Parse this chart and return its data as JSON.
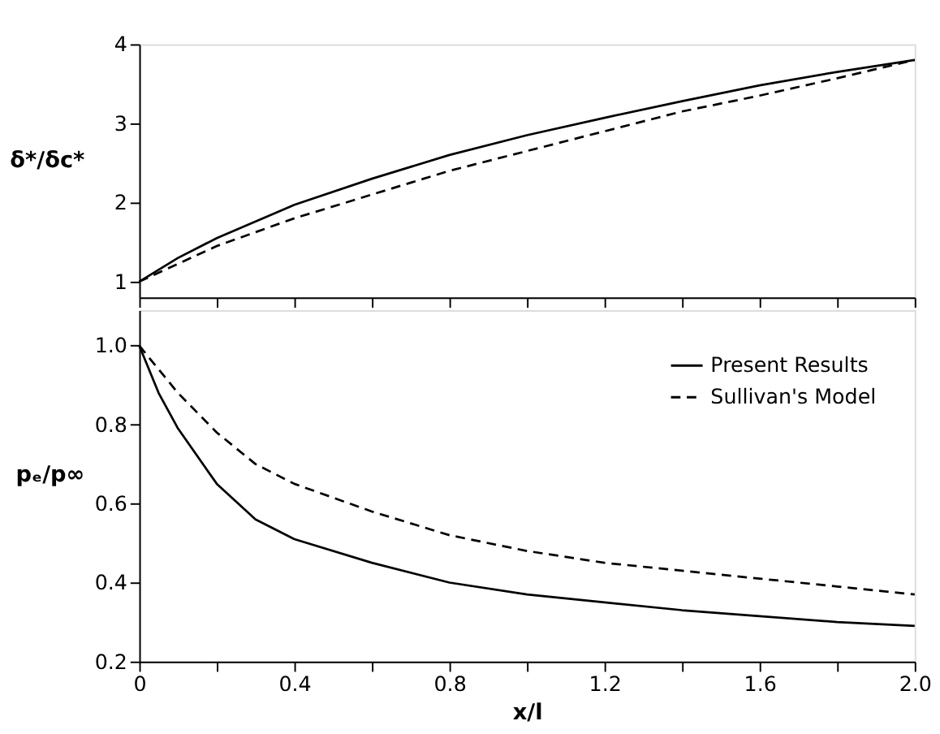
{
  "chart_data": [
    {
      "type": "line",
      "ylabel": "δ*/δc*",
      "xlim": [
        0,
        2.0
      ],
      "ylim": [
        0.8,
        4
      ],
      "yticks": [
        1,
        2,
        3,
        4
      ],
      "xticks": [
        0,
        {
          "value": 0.2,
          "label": null
        },
        0.4,
        {
          "value": 0.6,
          "label": null
        },
        0.8,
        {
          "value": 1.0,
          "label": null
        },
        1.2,
        {
          "value": 1.4,
          "label": null
        },
        1.6,
        {
          "value": 1.8,
          "label": null
        },
        2.0
      ],
      "tick_labels": "y",
      "grid": false,
      "marker": "none",
      "series": [
        {
          "color": "#000000",
          "line_style": "solid",
          "x": [
            0,
            0.1,
            0.2,
            0.4,
            0.6,
            0.8,
            1.0,
            1.2,
            1.4,
            1.6,
            1.8,
            2.0
          ],
          "values": [
            1.0,
            1.3,
            1.55,
            1.97,
            2.3,
            2.6,
            2.85,
            3.07,
            3.28,
            3.48,
            3.65,
            3.8
          ]
        },
        {
          "color": "#000000",
          "line_style": "dashed",
          "x": [
            0,
            0.2,
            0.4,
            0.6,
            0.8,
            1.0,
            1.2,
            1.4,
            1.6,
            1.8,
            2.0
          ],
          "values": [
            1.0,
            1.45,
            1.8,
            2.1,
            2.4,
            2.65,
            2.9,
            3.15,
            3.35,
            3.57,
            3.8
          ]
        }
      ]
    },
    {
      "type": "line",
      "ylabel": "pₑ/p∞",
      "xlabel": "x/l",
      "xlim": [
        0,
        2.0
      ],
      "ylim": [
        0.2,
        1.09
      ],
      "yticks": [
        0.2,
        0.4,
        0.6,
        0.8,
        {
          "value": 1.0,
          "label": "1.0"
        }
      ],
      "xticks": [
        0,
        {
          "value": 0.2,
          "label": null
        },
        0.4,
        {
          "value": 0.6,
          "label": null
        },
        0.8,
        {
          "value": 1.0,
          "label": null
        },
        1.2,
        {
          "value": 1.4,
          "label": null
        },
        1.6,
        {
          "value": 1.8,
          "label": null
        },
        {
          "value": 2.0,
          "label": "2.0"
        }
      ],
      "grid": false,
      "legend": "top right",
      "marker": "none",
      "series": [
        {
          "name": "Present Results",
          "color": "#000000",
          "line_style": "solid",
          "x": [
            0,
            0.05,
            0.1,
            0.2,
            0.3,
            0.4,
            0.6,
            0.8,
            1.0,
            1.2,
            1.4,
            1.6,
            1.8,
            2.0
          ],
          "values": [
            1.0,
            0.88,
            0.79,
            0.65,
            0.56,
            0.51,
            0.45,
            0.4,
            0.37,
            0.35,
            0.33,
            0.315,
            0.3,
            0.29
          ]
        },
        {
          "name": "Sullivan's Model",
          "color": "#000000",
          "line_style": "dashed",
          "x": [
            0,
            0.1,
            0.2,
            0.3,
            0.4,
            0.6,
            0.8,
            1.0,
            1.2,
            1.4,
            1.6,
            1.8,
            2.0
          ],
          "values": [
            1.0,
            0.88,
            0.78,
            0.7,
            0.65,
            0.58,
            0.52,
            0.48,
            0.45,
            0.43,
            0.41,
            0.39,
            0.37
          ]
        }
      ]
    }
  ]
}
